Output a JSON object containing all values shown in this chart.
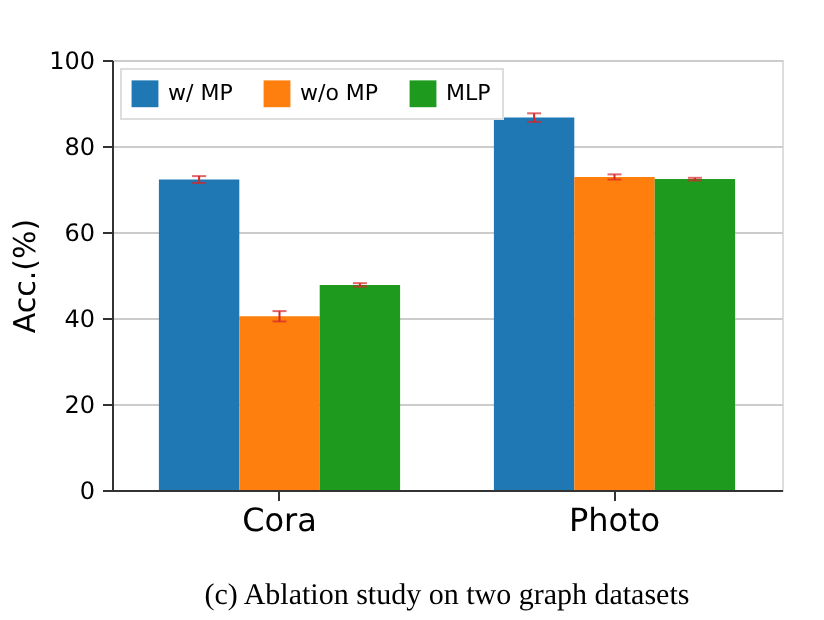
{
  "chart_data": {
    "type": "bar",
    "categories": [
      "Cora",
      "Photo"
    ],
    "ylabel": "Acc.(%)",
    "series": [
      {
        "name": "w/ MP",
        "color": "#1f77b4",
        "values": [
          72.2,
          86.6
        ],
        "errors": [
          0.8,
          1.0
        ]
      },
      {
        "name": "w/o MP",
        "color": "#ff7f0e",
        "values": [
          40.4,
          72.8
        ],
        "errors": [
          1.2,
          0.6
        ]
      },
      {
        "name": "MLP",
        "color": "#1e9a1e",
        "values": [
          47.7,
          72.3
        ],
        "errors": [
          0.4,
          0.3
        ]
      }
    ],
    "ylim": [
      0,
      100
    ],
    "yticks": [
      0,
      20,
      40,
      60,
      80,
      100
    ],
    "grid": "y",
    "legend": "top left",
    "annotations": [
      "(c) Ablation study on two graph datasets"
    ]
  }
}
